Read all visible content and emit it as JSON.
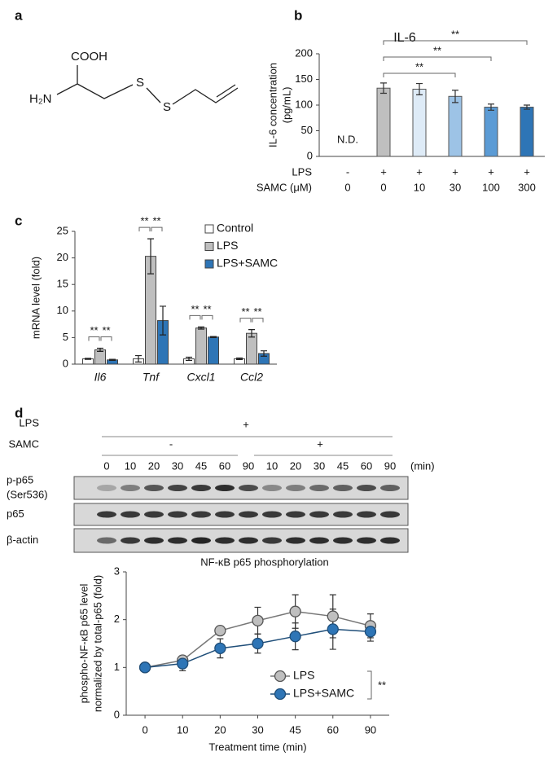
{
  "panel_labels": [
    "a",
    "b",
    "c",
    "d"
  ],
  "structure": {
    "acid": "COOH",
    "amine": "H₂N",
    "sulfur_1": "S",
    "sulfur_2": "S"
  },
  "chart_data": [
    {
      "type": "bar",
      "title": "IL-6",
      "ylabel": [
        "IL-6 concentration",
        "(pg/mL)"
      ],
      "values": [
        null,
        133,
        131,
        117,
        96,
        96
      ],
      "errors": [
        null,
        10,
        11,
        12,
        6,
        4
      ],
      "value_labels": [
        "N.D.",
        null,
        null,
        null,
        null,
        null
      ],
      "colors": [
        "#bfbfbf",
        "#bfbfbf",
        "#deebf7",
        "#9dc3e6",
        "#5b9bd5",
        "#2e75b6"
      ],
      "ylim": [
        0,
        200
      ],
      "yticks": [
        0,
        50,
        100,
        150,
        200
      ],
      "conditions": [
        {
          "name": "LPS",
          "values": [
            "-",
            "+",
            "+",
            "+",
            "+",
            "+"
          ]
        },
        {
          "name": "SAMC (μM)",
          "values": [
            0,
            0,
            10,
            30,
            100,
            300
          ]
        }
      ],
      "significance": [
        "**",
        "**",
        "**"
      ]
    },
    {
      "type": "bar",
      "ylabel": "mRNA level (fold)",
      "categories": [
        "Il6",
        "Tnf",
        "Cxcl1",
        "Ccl2"
      ],
      "series": [
        {
          "name": "Control",
          "color": "#ffffff",
          "values": [
            1,
            1,
            1,
            1
          ],
          "errors": [
            0.1,
            0.6,
            0.3,
            0.15
          ]
        },
        {
          "name": "LPS",
          "color": "#bfbfbf",
          "values": [
            2.7,
            20.3,
            6.8,
            5.8
          ],
          "errors": [
            0.3,
            3.3,
            0.2,
            0.7
          ]
        },
        {
          "name": "LPS+SAMC",
          "color": "#2e75b6",
          "values": [
            0.8,
            8.2,
            5.1,
            2.0
          ],
          "errors": [
            0.1,
            2.7,
            0.1,
            0.5
          ]
        }
      ],
      "ylim": [
        0,
        25
      ],
      "yticks": [
        0,
        5,
        10,
        15,
        20,
        25
      ],
      "legend": "upper right",
      "significance": [
        "**",
        "**",
        "**",
        "**",
        "**",
        "**",
        "**",
        "**"
      ]
    },
    {
      "type": "line",
      "title": "NF-κB p65 phosphorylation",
      "ylabel": [
        "phospho-NF-κB p65 level",
        "normalized by total-p65 (fold)"
      ],
      "xlabel": "Treatment time (min)",
      "categories": [
        "0",
        "10",
        "20",
        "30",
        "45",
        "60",
        "90"
      ],
      "series": [
        {
          "name": "LPS",
          "color": "#bfbfbf",
          "values": [
            1,
            1.15,
            1.77,
            1.98,
            2.17,
            2.07,
            1.87
          ],
          "errors": [
            0,
            0.08,
            0.07,
            0.28,
            0.35,
            0.45,
            0.25
          ]
        },
        {
          "name": "LPS+SAMC",
          "color": "#2e75b6",
          "values": [
            1,
            1.08,
            1.4,
            1.5,
            1.65,
            1.8,
            1.75
          ],
          "errors": [
            0,
            0.15,
            0.2,
            0.2,
            0.28,
            0.42,
            0.2
          ]
        }
      ],
      "ylim": [
        0,
        3
      ],
      "yticks": [
        0,
        1,
        2,
        3
      ],
      "legend": "lower right",
      "significance": "**"
    }
  ],
  "blot": {
    "lps_label": "LPS",
    "lps_sign": "+",
    "samc_label": "SAMC",
    "samc_signs": [
      "-",
      "+"
    ],
    "lanes": [
      0,
      10,
      20,
      30,
      45,
      60,
      90,
      10,
      20,
      30,
      45,
      60,
      90
    ],
    "unit": "(min)",
    "rows": [
      [
        "p-p65",
        "(Ser536)"
      ],
      [
        "p65"
      ],
      [
        "β-actin"
      ]
    ]
  }
}
